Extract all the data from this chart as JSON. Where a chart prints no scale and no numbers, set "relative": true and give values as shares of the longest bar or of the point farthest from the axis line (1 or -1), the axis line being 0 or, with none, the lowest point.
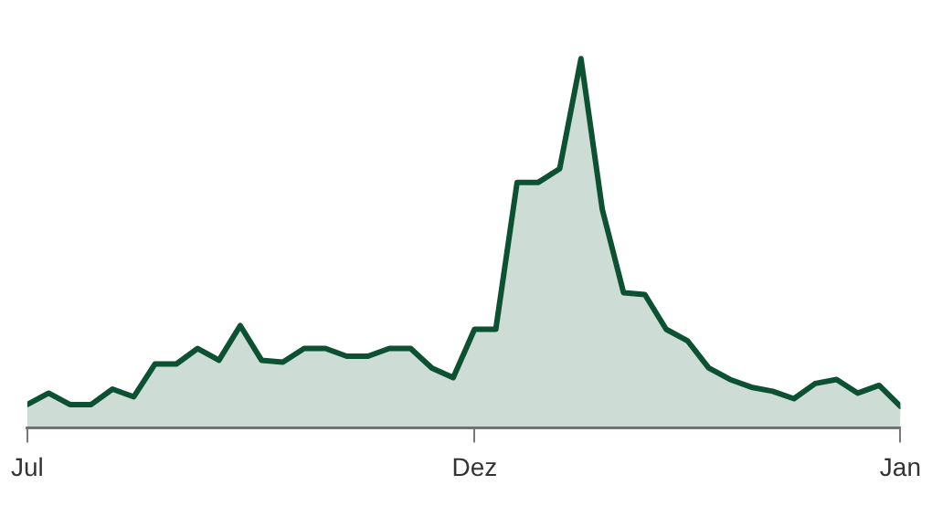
{
  "chart_data": {
    "type": "area",
    "relative": true,
    "categories": [
      "Jul",
      null,
      null,
      null,
      null,
      null,
      null,
      null,
      null,
      null,
      null,
      null,
      null,
      null,
      null,
      null,
      null,
      null,
      null,
      null,
      null,
      "Dez",
      null,
      null,
      null,
      null,
      null,
      null,
      null,
      null,
      null,
      null,
      null,
      null,
      null,
      null,
      null,
      null,
      null,
      null,
      null,
      "Jan"
    ],
    "series": [
      {
        "color": "#0b5132",
        "values": [
          0.063,
          0.094,
          0.063,
          0.063,
          0.105,
          0.084,
          0.173,
          0.173,
          0.215,
          0.183,
          0.277,
          0.183,
          0.178,
          0.215,
          0.215,
          0.194,
          0.194,
          0.215,
          0.215,
          0.162,
          0.136,
          0.267,
          0.267,
          0.665,
          0.665,
          0.702,
          1,
          0.592,
          0.366,
          0.361,
          0.267,
          0.236,
          0.162,
          0.131,
          0.11,
          0.099,
          0.079,
          0.12,
          0.131,
          0.094,
          0.115,
          0.058
        ]
      }
    ],
    "tick_labels": "x",
    "legend": false
  }
}
